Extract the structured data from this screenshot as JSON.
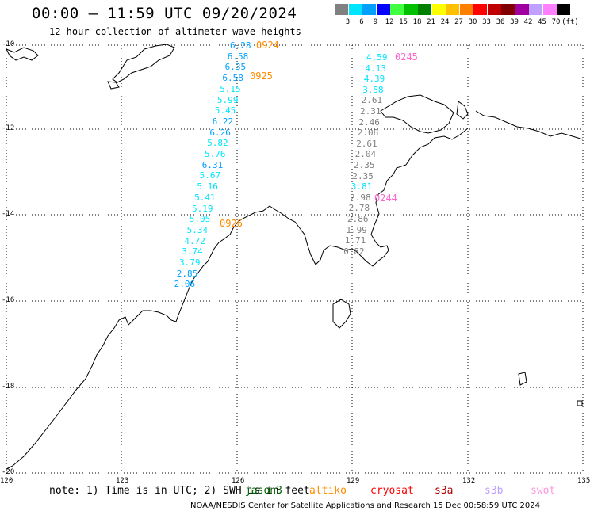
{
  "title": "00:00 – 11:59 UTC 09/20/2024",
  "subtitle": "12 hour collection of altimeter wave heights",
  "legend": {
    "unit": "(ft)",
    "items": [
      {
        "label": "3",
        "color": "#808080"
      },
      {
        "label": "6",
        "color": "#00e5ff"
      },
      {
        "label": "9",
        "color": "#00a0ff"
      },
      {
        "label": "12",
        "color": "#0000ff"
      },
      {
        "label": "15",
        "color": "#40ff40"
      },
      {
        "label": "18",
        "color": "#00c000"
      },
      {
        "label": "21",
        "color": "#008000"
      },
      {
        "label": "24",
        "color": "#ffff00"
      },
      {
        "label": "27",
        "color": "#ffc000"
      },
      {
        "label": "30",
        "color": "#ff8000"
      },
      {
        "label": "33",
        "color": "#ff0000"
      },
      {
        "label": "36",
        "color": "#c00000"
      },
      {
        "label": "39",
        "color": "#800000"
      },
      {
        "label": "42",
        "color": "#a000a0"
      },
      {
        "label": "45",
        "color": "#c0a0ff"
      },
      {
        "label": "70",
        "color": "#ff80ff"
      },
      {
        "label": "",
        "color": "#000000"
      }
    ]
  },
  "axes": {
    "lon_labels": [
      "120",
      "123",
      "126",
      "129",
      "132",
      "135"
    ],
    "lat_labels": [
      "-10",
      "-12",
      "-14",
      "-16",
      "-18",
      "-20"
    ]
  },
  "tracks": [
    {
      "time": "0924",
      "color": "#ff8c00",
      "values": [
        "6.28",
        "6.58",
        "6.35",
        "6.58",
        "5.15",
        "5.99",
        "5.45",
        "6.22",
        "6.26",
        "5.82",
        "5.76",
        "6.31",
        "5.67",
        "5.16",
        "5.41",
        "5.19",
        "5.05",
        "5.34",
        "4.72",
        "3.74",
        "3.79",
        "2.85",
        "2.06"
      ]
    },
    {
      "time": "0925",
      "color": "#ff8c00"
    },
    {
      "time": "0926",
      "color": "#ff8c00"
    },
    {
      "time": "0245",
      "color": "#ff66cc",
      "values": [
        "4.59",
        "4.13",
        "4.39",
        "3.58",
        "2.61",
        "2.31",
        "2.46",
        "2.08",
        "2.61",
        "2.04",
        "2.35",
        "2.35",
        "3.81",
        "2.98",
        "2.78",
        "2.86",
        "1.99",
        "1.71",
        "0.82"
      ]
    },
    {
      "time": "0244",
      "color": "#ff66cc"
    }
  ],
  "note": {
    "text": "note: 1) Time is in UTC; 2) SWH is in feet",
    "satellites": [
      {
        "name": "jason3",
        "color": "#006400"
      },
      {
        "name": "altiko",
        "color": "#ff8c00"
      },
      {
        "name": "cryosat",
        "color": "#ff0000"
      },
      {
        "name": "s3a",
        "color": "#b00000"
      },
      {
        "name": "s3b",
        "color": "#c0a0ff"
      },
      {
        "name": "swot",
        "color": "#ff99dd"
      }
    ]
  },
  "credit": "NOAA/NESDIS Center for Satellite Applications and Research     15 Dec 00:58:59 UTC 2024"
}
